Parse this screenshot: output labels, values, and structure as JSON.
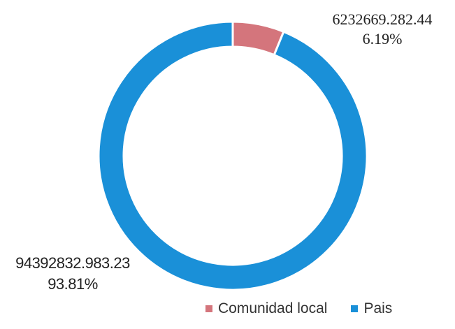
{
  "chart_data": {
    "type": "pie",
    "donut": true,
    "categories": [
      "Comunidad local",
      "Pais"
    ],
    "values": [
      6232669.28244,
      94392832.98323
    ],
    "value_labels": [
      "6232669.282.44",
      "94392832.983.23"
    ],
    "percent_labels": [
      "6.19%",
      "93.81%"
    ],
    "colors": [
      "#d4757c",
      "#1a90d8"
    ],
    "legend": {
      "position": "bottom-right",
      "entries": [
        "Comunidad local",
        "Pais"
      ]
    }
  }
}
